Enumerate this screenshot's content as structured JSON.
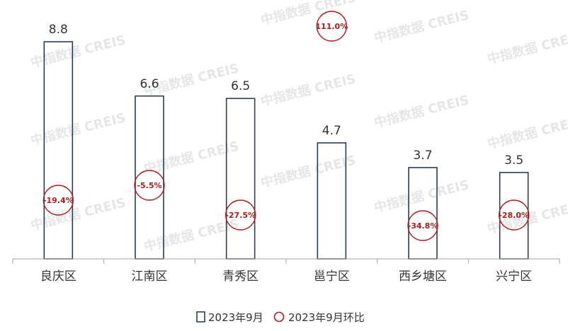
{
  "chart_data": {
    "type": "bar",
    "categories": [
      "良庆区",
      "江南区",
      "青秀区",
      "邕宁区",
      "西乡塘区",
      "兴宁区"
    ],
    "series": [
      {
        "name": "2023年9月",
        "values": [
          8.8,
          6.6,
          6.5,
          4.7,
          3.7,
          3.5
        ],
        "color": "#2c3e57"
      },
      {
        "name": "2023年9月环比",
        "values": [
          -19.4,
          -5.5,
          -27.5,
          111.0,
          -34.8,
          -28.0
        ],
        "labels": [
          "-19.4%",
          "-5.5%",
          "-27.5%",
          "111.0%",
          "-34.8%",
          "-28.0%"
        ],
        "color": "#b01c1c"
      }
    ],
    "value_labels": [
      "8.8",
      "6.6",
      "6.5",
      "4.7",
      "3.7",
      "3.5"
    ],
    "ylim": [
      0,
      8.8
    ],
    "legend": "bottom",
    "grid": false
  },
  "watermark": "中指数据 CREIS"
}
